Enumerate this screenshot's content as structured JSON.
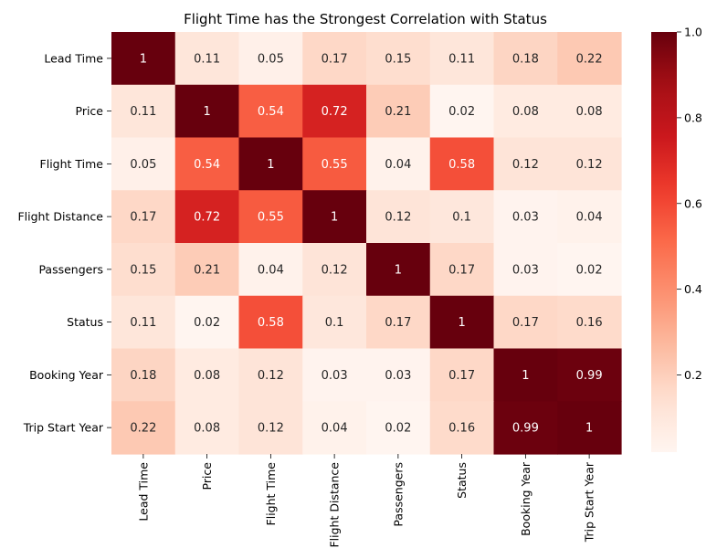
{
  "chart_data": {
    "type": "heatmap",
    "title": "Flight Time has the Strongest Correlation with Status",
    "xlabel": "",
    "ylabel": "",
    "rows": [
      "Lead Time",
      "Price",
      "Flight Time",
      "Flight Distance",
      "Passengers",
      "Status",
      "Booking Year",
      "Trip Start Year"
    ],
    "columns": [
      "Lead Time",
      "Price",
      "Flight Time",
      "Flight Distance",
      "Passengers",
      "Status",
      "Booking Year",
      "Trip Start Year"
    ],
    "values": [
      [
        1,
        0.11,
        0.05,
        0.17,
        0.15,
        0.11,
        0.18,
        0.22
      ],
      [
        0.11,
        1,
        0.54,
        0.72,
        0.21,
        0.02,
        0.08,
        0.08
      ],
      [
        0.05,
        0.54,
        1,
        0.55,
        0.04,
        0.58,
        0.12,
        0.12
      ],
      [
        0.17,
        0.72,
        0.55,
        1,
        0.12,
        0.1,
        0.03,
        0.04
      ],
      [
        0.15,
        0.21,
        0.04,
        0.12,
        1,
        0.17,
        0.03,
        0.02
      ],
      [
        0.11,
        0.02,
        0.58,
        0.1,
        0.17,
        1,
        0.17,
        0.16
      ],
      [
        0.18,
        0.08,
        0.12,
        0.03,
        0.03,
        0.17,
        1,
        0.99
      ],
      [
        0.22,
        0.08,
        0.12,
        0.04,
        0.02,
        0.16,
        0.99,
        1
      ]
    ],
    "colormap": "Reds",
    "colorbar": {
      "range": [
        0.02,
        1.0
      ],
      "ticks": [
        0.2,
        0.4,
        0.6,
        0.8,
        1.0
      ],
      "tick_labels": [
        "0.2",
        "0.4",
        "0.6",
        "0.8",
        "1.0"
      ]
    }
  }
}
